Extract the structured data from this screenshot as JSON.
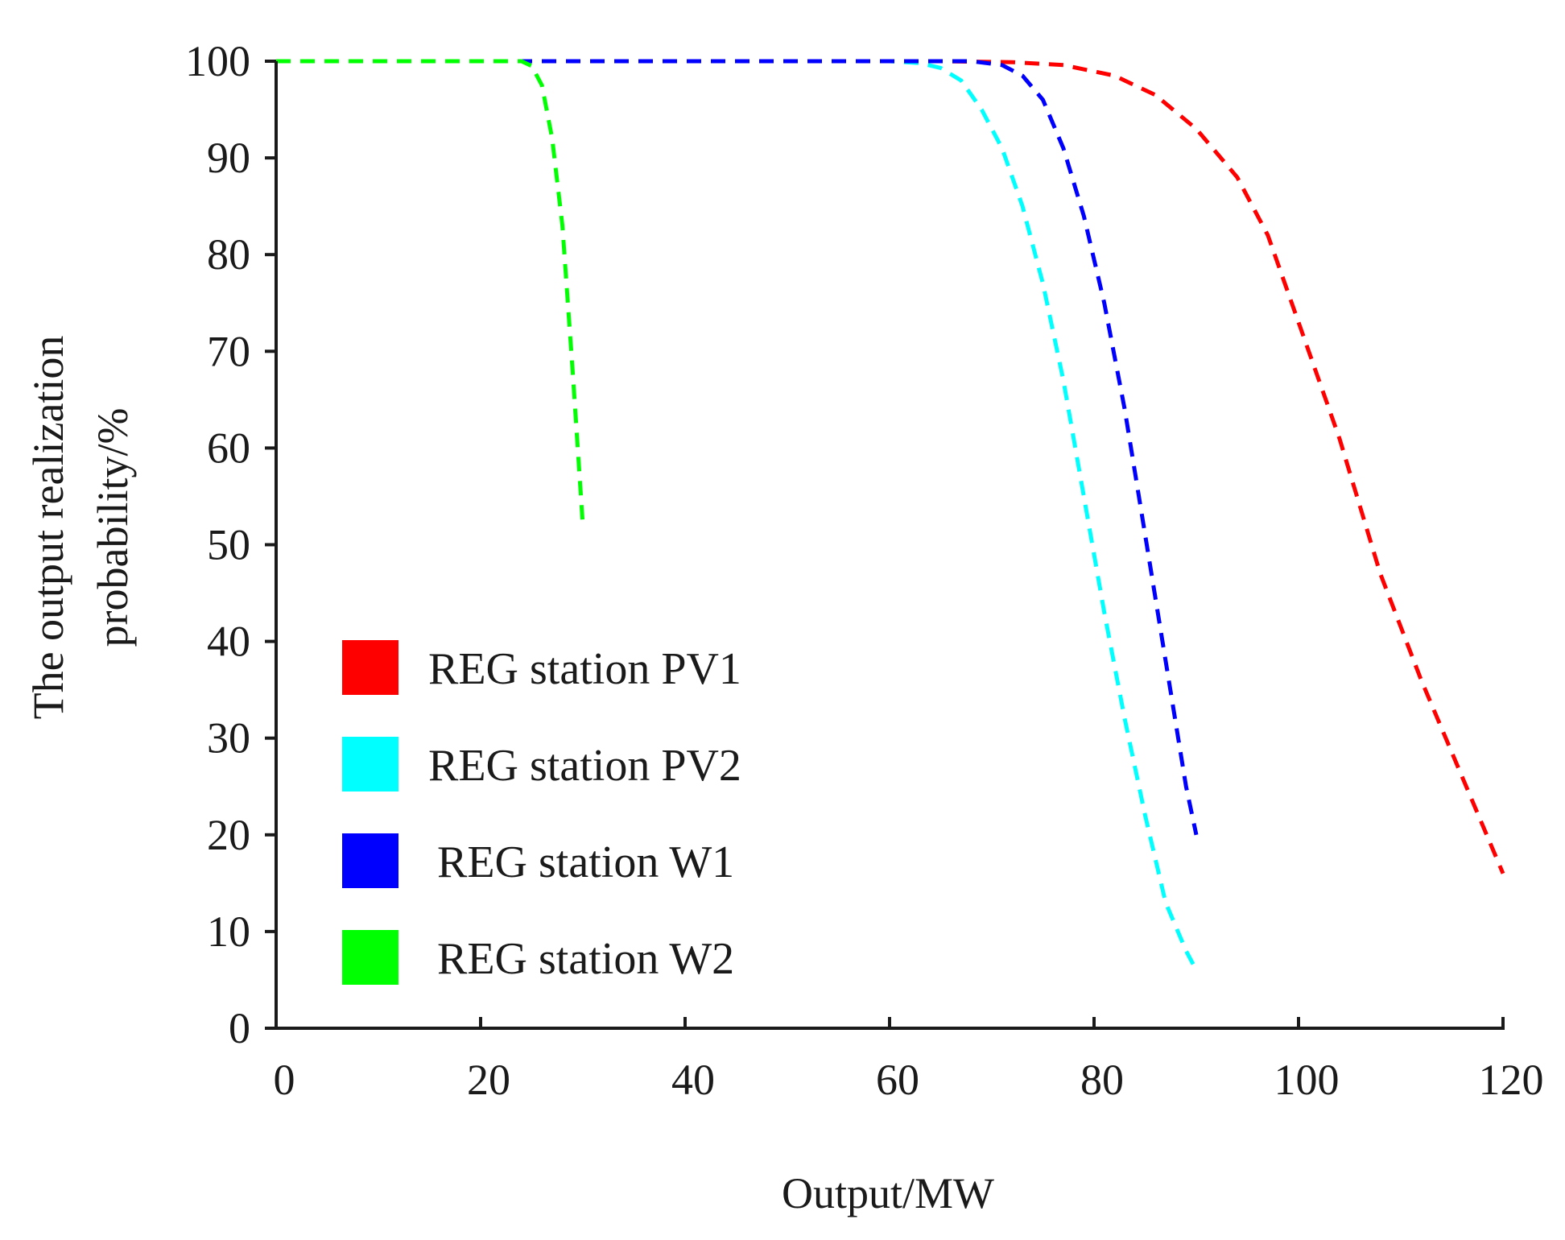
{
  "chart_data": {
    "type": "line",
    "xlabel": "Output/MW",
    "ylabel_lines": [
      "The output realization",
      "probability/%"
    ],
    "xlim": [
      0,
      120
    ],
    "ylim": [
      0,
      100
    ],
    "xticks": [
      0,
      20,
      40,
      60,
      80,
      100,
      120
    ],
    "yticks": [
      0,
      10,
      20,
      30,
      40,
      50,
      60,
      70,
      80,
      90,
      100
    ],
    "grid": false,
    "legend_position": "lower-left",
    "series": [
      {
        "name": "REG station PV1",
        "color": "#ff0000",
        "x": [
          0,
          65,
          72,
          77,
          82,
          86,
          90,
          94,
          97,
          100,
          104,
          108,
          112,
          116,
          120
        ],
        "y": [
          100,
          100,
          99.9,
          99.6,
          98.5,
          96.5,
          93,
          88,
          82,
          73,
          61,
          47,
          36,
          26,
          16
        ]
      },
      {
        "name": "REG station PV2",
        "color": "#00ffff",
        "x": [
          0,
          60,
          63,
          65,
          67,
          69,
          71,
          73,
          75,
          77,
          79,
          81,
          83,
          85,
          87,
          89,
          90
        ],
        "y": [
          100,
          100,
          99.8,
          99.3,
          98,
          95,
          91,
          85,
          77,
          67,
          55,
          43,
          32,
          22,
          13,
          8,
          6
        ]
      },
      {
        "name": "REG station W1",
        "color": "#0000ff",
        "x": [
          0,
          68,
          71,
          73,
          75,
          77,
          79,
          81,
          83,
          85,
          87,
          89,
          90
        ],
        "y": [
          100,
          100,
          99.6,
          98.5,
          96,
          91,
          84,
          75,
          64,
          51,
          38,
          25,
          20
        ]
      },
      {
        "name": "REG station W2",
        "color": "#00ff00",
        "x": [
          0,
          24,
          25,
          26,
          27,
          28,
          29,
          30
        ],
        "y": [
          100,
          100,
          99.5,
          97.5,
          92,
          83,
          68,
          52
        ]
      }
    ]
  }
}
